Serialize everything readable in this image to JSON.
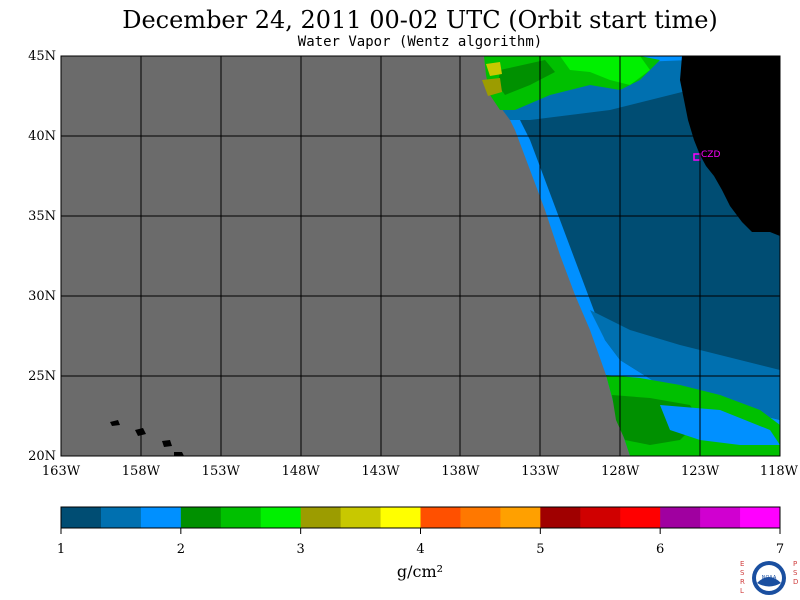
{
  "header": {
    "title": "December 24, 2011  00-02 UTC  (Orbit start time)",
    "subtitle": "Water Vapor (Wentz algorithm)"
  },
  "map": {
    "lat_ticks": [
      "45N",
      "40N",
      "35N",
      "30N",
      "25N",
      "20N"
    ],
    "lon_ticks": [
      "163W",
      "158W",
      "153W",
      "148W",
      "143W",
      "138W",
      "133W",
      "128W",
      "123W",
      "118W"
    ],
    "station_label": "CZD",
    "colors": {
      "no_data": "#6b6b6b",
      "land": "#000000",
      "station": "#ff00ff"
    }
  },
  "colorbar": {
    "ticks": [
      "1",
      "2",
      "3",
      "4",
      "5",
      "6",
      "7"
    ],
    "unit": "g/cm²",
    "colors": [
      "#004d73",
      "#0070b0",
      "#0090ff",
      "#009000",
      "#00c000",
      "#00f000",
      "#9c9c00",
      "#c8c800",
      "#ffff00",
      "#ff5000",
      "#ff7800",
      "#ffa000",
      "#a00000",
      "#d00000",
      "#ff0000",
      "#a000a0",
      "#d000d0",
      "#ff00ff"
    ]
  },
  "logo": {
    "left_letters": "ESRL",
    "right_letters": "PSD",
    "center_text": "NOAA"
  }
}
